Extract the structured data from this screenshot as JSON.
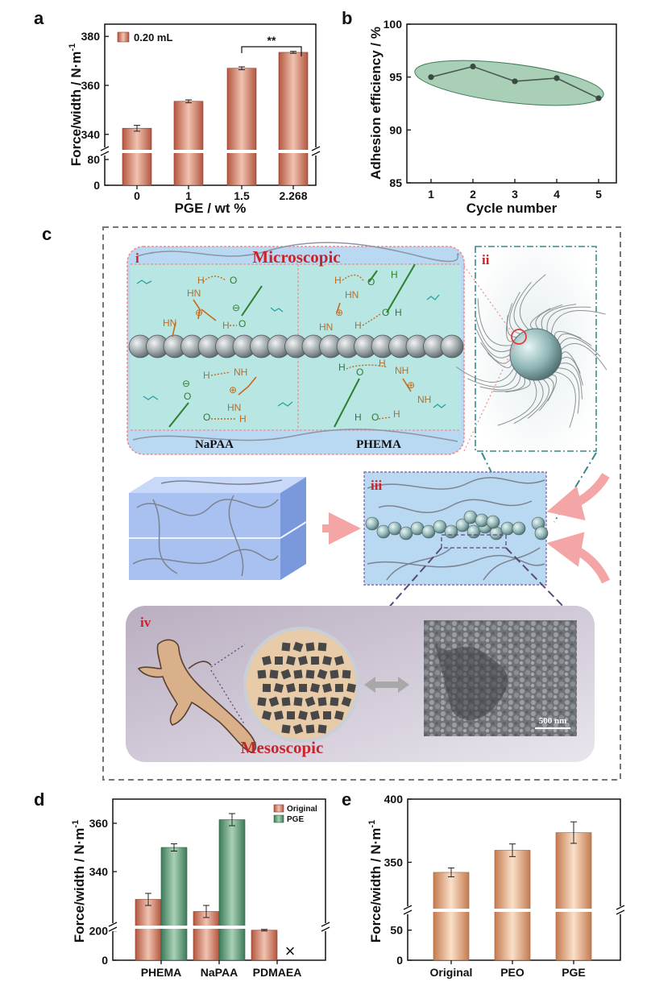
{
  "panels": {
    "a": "a",
    "b": "b",
    "c": "c",
    "d": "d",
    "e": "e"
  },
  "chart_data": [
    {
      "id": "a",
      "type": "bar",
      "categories": [
        "0",
        "1",
        "1.5",
        "2.268"
      ],
      "values": [
        342.5,
        353.5,
        367.0,
        373.5
      ],
      "errors": [
        1.2,
        0.6,
        0.6,
        0.4
      ],
      "xlabel": "PGE / wt %",
      "ylabel": "Force/width / N·m",
      "ylabel_sup": "-1",
      "ylim_upper": [
        335,
        385
      ],
      "yticks_upper": [
        340,
        360,
        380
      ],
      "yticks_lower": [
        0,
        80
      ],
      "legend": "0.20 mL",
      "annotation": "**",
      "color": "#c96b55"
    },
    {
      "id": "b",
      "type": "line",
      "x": [
        1,
        2,
        3,
        4,
        5
      ],
      "values": [
        95.0,
        96.0,
        94.6,
        94.9,
        93.0
      ],
      "xlabel": "Cycle number",
      "ylabel": "Adhesion efficiency / %",
      "ylim": [
        85,
        100
      ],
      "yticks": [
        85,
        90,
        95,
        100
      ],
      "color": "#7aab8e"
    },
    {
      "id": "d",
      "type": "bar",
      "categories": [
        "PHEMA",
        "NaPAA",
        "PDMAEA"
      ],
      "series": [
        {
          "name": "Original",
          "values": [
            328.5,
            323.5,
            205.0
          ],
          "errors": [
            2.5,
            2.5,
            1.5
          ],
          "color": "#c96b55"
        },
        {
          "name": "PGE",
          "values": [
            350.0,
            361.5,
            null
          ],
          "errors": [
            1.5,
            2.5,
            null
          ],
          "color": "#4d8a6a"
        }
      ],
      "missing_marker": "×",
      "ylabel": "Force/width / N·m",
      "ylabel_sup": "-1",
      "yticks_upper": [
        340,
        360
      ],
      "yticks_lower": [
        0,
        200
      ],
      "legend_placement": "top-right"
    },
    {
      "id": "e",
      "type": "bar",
      "categories": [
        "Original",
        "PEO",
        "PGE"
      ],
      "values": [
        342.0,
        359.5,
        373.5
      ],
      "errors": [
        3.5,
        5.0,
        8.5
      ],
      "ylabel": "Force/width / N·m",
      "ylabel_sup": "-1",
      "yticks_upper": [
        350,
        400
      ],
      "yticks_lower": [
        0,
        50
      ],
      "color": "#d9946e"
    }
  ],
  "illustration": {
    "i_label": "i",
    "ii_label": "ii",
    "iii_label": "iii",
    "iv_label": "iv",
    "microscopic": "Microscopic",
    "mesoscopic": "Mesoscopic",
    "napaa": "NaPAA",
    "phema": "PHEMA",
    "scale": "500 nm",
    "chem": {
      "h": "H",
      "nh": "NH",
      "hn": "HN",
      "o": "O",
      "plus": "⊕",
      "minus": "⊖"
    }
  }
}
